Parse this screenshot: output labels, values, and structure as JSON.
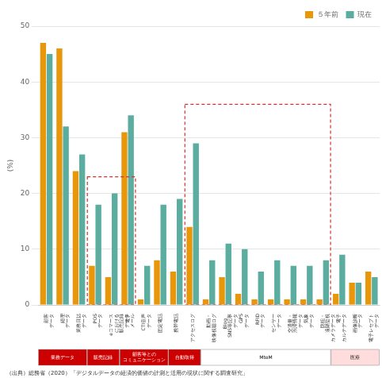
{
  "chart_data": {
    "type": "bar",
    "categories": [
      "顧客\nデータ",
      "経理\nデータ",
      "業務日誌\nデータ",
      "POS\nデータ",
      "eコマース\nにおける\n販売記録\nデータ",
      "電子\nメール",
      "CTI音声\nデータ",
      "固定電話",
      "携帯電話",
      "アクセスログ",
      "動画・\n映像視聴ログ",
      "Blog、\nSNS等記事\nデータ",
      "GPS\nデータ",
      "RFID\nデータ",
      "センサー\nデータ",
      "交通量・\n渋滞情報\nデータ",
      "気象\nデータ",
      "防犯・\n遠隔監視\nカメラデータ",
      "電子\nカルテデータ",
      "画像診断\nデータ",
      "電子レセプト\nデータ"
    ],
    "series": [
      {
        "name": "５年前",
        "color": "#E8960A",
        "values": [
          47,
          46,
          24,
          7,
          5,
          31,
          1,
          8,
          6,
          14,
          1,
          5,
          2,
          1,
          1,
          1,
          1,
          1,
          2,
          4,
          6
        ]
      },
      {
        "name": "現在",
        "color": "#5BADA0",
        "values": [
          45,
          32,
          27,
          18,
          20,
          34,
          7,
          18,
          19,
          29,
          8,
          11,
          10,
          6,
          8,
          7,
          7,
          8,
          9,
          4,
          5
        ]
      }
    ],
    "y_label": "(%)",
    "ylim": [
      0,
      50
    ],
    "yticks": [
      0,
      10,
      20,
      30,
      40,
      50
    ],
    "grid": true,
    "legend": "upper right",
    "boxes": [
      {
        "start": 3,
        "end": 5,
        "ymax": 23,
        "color": "#cc3333"
      },
      {
        "start": 9,
        "end": 17,
        "ymax": 36,
        "color": "#cc3333"
      }
    ],
    "category_groups": [
      {
        "label": "業務データ",
        "start": 0,
        "end": 2,
        "color": "#cc0000",
        "text_color": "#ffffff"
      },
      {
        "label": "販売記録",
        "start": 3,
        "end": 4,
        "color": "#cc0000",
        "text_color": "#ffffff"
      },
      {
        "label": "顧客等との\nコミュニケーション",
        "start": 5,
        "end": 7,
        "color": "#cc0000",
        "text_color": "#ffffff"
      },
      {
        "label": "自動取得",
        "start": 8,
        "end": 9,
        "color": "#cc0000",
        "text_color": "#ffffff"
      },
      {
        "label": "MtoM",
        "start": 10,
        "end": 17,
        "color": "#ffffff",
        "text_color": "#000000"
      },
      {
        "label": "医療",
        "start": 18,
        "end": 20,
        "color": "#ffdddd",
        "text_color": "#000000"
      }
    ],
    "source": "（出典）総務省（2020）「デジタルデータの経済的価値の計測と活用の現状に関する調査研究」"
  }
}
